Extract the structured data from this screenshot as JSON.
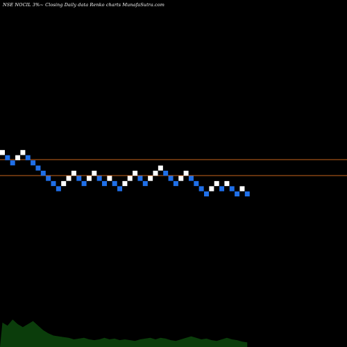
{
  "title": "NSE NOCIL 3%~  Closing Daily data  Renko  charts MunafaSutra.com",
  "colors": {
    "background": "#000000",
    "up_brick": "#ffffff",
    "down_brick": "#1f6fe8",
    "reference_line": "#c8641c",
    "volume_fill": "#0b3d0b",
    "label_text": "#e6e6e6"
  },
  "chart_data": {
    "type": "renko",
    "title": "NSE NOCIL 3%~  Closing Daily data  Renko  charts MunafaSutra.com",
    "brick_size_percent": 3,
    "grid": false,
    "reference_levels": [
      "upper",
      "lower"
    ],
    "bricks": [
      {
        "dir": "up",
        "level": 0
      },
      {
        "dir": "down",
        "level": -1
      },
      {
        "dir": "down",
        "level": -2
      },
      {
        "dir": "up",
        "level": -1
      },
      {
        "dir": "up",
        "level": 0
      },
      {
        "dir": "down",
        "level": -1
      },
      {
        "dir": "down",
        "level": -2
      },
      {
        "dir": "down",
        "level": -3
      },
      {
        "dir": "down",
        "level": -4
      },
      {
        "dir": "down",
        "level": -5
      },
      {
        "dir": "down",
        "level": -6
      },
      {
        "dir": "down",
        "level": -7
      },
      {
        "dir": "up",
        "level": -6
      },
      {
        "dir": "up",
        "level": -5
      },
      {
        "dir": "up",
        "level": -4
      },
      {
        "dir": "down",
        "level": -5
      },
      {
        "dir": "down",
        "level": -6
      },
      {
        "dir": "up",
        "level": -5
      },
      {
        "dir": "up",
        "level": -4
      },
      {
        "dir": "down",
        "level": -5
      },
      {
        "dir": "down",
        "level": -6
      },
      {
        "dir": "up",
        "level": -5
      },
      {
        "dir": "down",
        "level": -6
      },
      {
        "dir": "down",
        "level": -7
      },
      {
        "dir": "up",
        "level": -6
      },
      {
        "dir": "up",
        "level": -5
      },
      {
        "dir": "up",
        "level": -4
      },
      {
        "dir": "down",
        "level": -5
      },
      {
        "dir": "down",
        "level": -6
      },
      {
        "dir": "up",
        "level": -5
      },
      {
        "dir": "up",
        "level": -4
      },
      {
        "dir": "up",
        "level": -3
      },
      {
        "dir": "down",
        "level": -4
      },
      {
        "dir": "down",
        "level": -5
      },
      {
        "dir": "down",
        "level": -6
      },
      {
        "dir": "up",
        "level": -5
      },
      {
        "dir": "up",
        "level": -4
      },
      {
        "dir": "down",
        "level": -5
      },
      {
        "dir": "down",
        "level": -6
      },
      {
        "dir": "down",
        "level": -7
      },
      {
        "dir": "down",
        "level": -8
      },
      {
        "dir": "up",
        "level": -7
      },
      {
        "dir": "up",
        "level": -6
      },
      {
        "dir": "down",
        "level": -7
      },
      {
        "dir": "up",
        "level": -6
      },
      {
        "dir": "down",
        "level": -7
      },
      {
        "dir": "down",
        "level": -8
      },
      {
        "dir": "up",
        "level": -7
      },
      {
        "dir": "down",
        "level": -8
      }
    ],
    "volume_profile": [
      0.32,
      0.28,
      0.36,
      0.3,
      0.26,
      0.3,
      0.34,
      0.28,
      0.22,
      0.18,
      0.15,
      0.14,
      0.13,
      0.12,
      0.1,
      0.11,
      0.12,
      0.1,
      0.09,
      0.1,
      0.12,
      0.1,
      0.11,
      0.09,
      0.1,
      0.09,
      0.08,
      0.1,
      0.11,
      0.12,
      0.1,
      0.12,
      0.11,
      0.09,
      0.08,
      0.1,
      0.12,
      0.14,
      0.12,
      0.1,
      0.11,
      0.09,
      0.08,
      0.1,
      0.12,
      0.1,
      0.09,
      0.07,
      0.06
    ]
  }
}
